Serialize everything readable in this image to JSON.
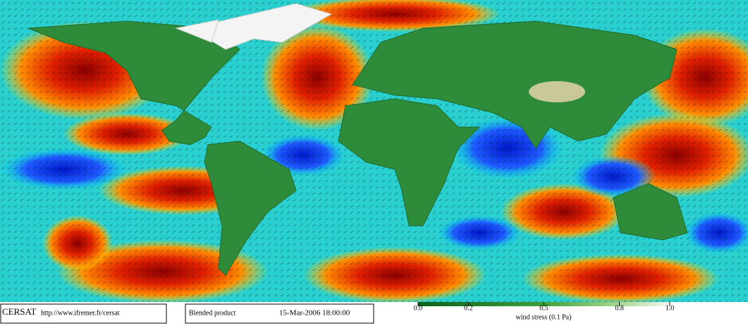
{
  "footer": {
    "logo": "CERSAT",
    "url": "http://www.ifremer.fr/cersat",
    "product": "Blended product",
    "datetime": "15-Mar-2006 18:00:00"
  },
  "colorbar": {
    "lim": [
      0,
      1
    ],
    "ticks": [
      {
        "value": 0,
        "label": "0.0"
      },
      {
        "value": 0.2,
        "label": "0.2"
      },
      {
        "value": 0.5,
        "label": "0.5"
      },
      {
        "value": 0.8,
        "label": "0.8"
      },
      {
        "value": 1,
        "label": "1.0"
      }
    ],
    "label": "wind stress (0.1 Pa)"
  }
}
